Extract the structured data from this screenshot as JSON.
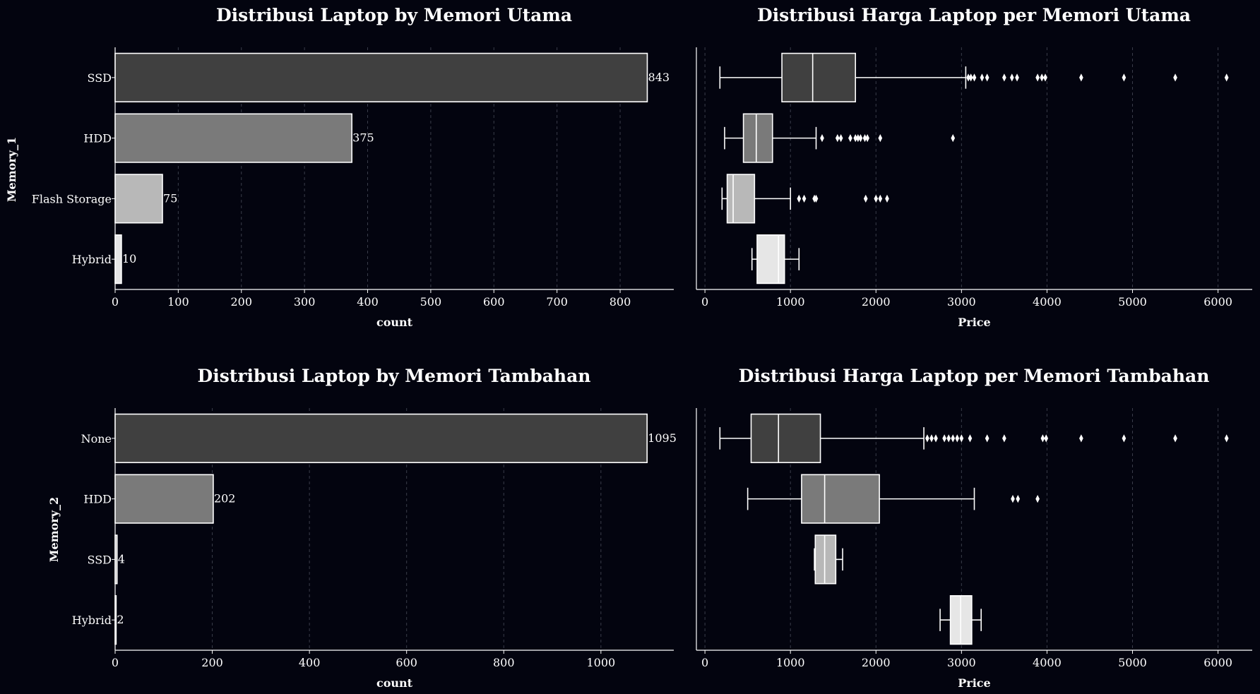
{
  "colors": {
    "background": "#03040f",
    "foreground": "#ffffff",
    "grid": "#3a3d4a",
    "categories": [
      "#404040",
      "#7a7a7a",
      "#b8b8b8",
      "#e6e6e6"
    ]
  },
  "chart_data": [
    {
      "type": "bar",
      "orientation": "horizontal",
      "title": "Distribusi Laptop by Memori Utama",
      "xlabel": "count",
      "ylabel": "Memory_1",
      "categories": [
        "SSD",
        "HDD",
        "Flash Storage",
        "Hybrid"
      ],
      "values": [
        843,
        375,
        75,
        10
      ],
      "data_labels": [
        "843",
        "375",
        "75",
        "10"
      ],
      "xlim": [
        0,
        885
      ],
      "xticks": [
        0,
        100,
        200,
        300,
        400,
        500,
        600,
        700,
        800
      ],
      "grid": "vertical dashed"
    },
    {
      "type": "box",
      "orientation": "horizontal",
      "title": "Distribusi Harga Laptop per Memori Utama",
      "xlabel": "Price",
      "categories": [
        "SSD",
        "HDD",
        "Flash Storage",
        "Hybrid"
      ],
      "xlim": [
        -100,
        6400
      ],
      "xticks": [
        0,
        1000,
        2000,
        3000,
        4000,
        5000,
        6000
      ],
      "grid": "vertical dashed",
      "boxes": [
        {
          "whisker_low": 175,
          "q1": 900,
          "median": 1260,
          "q3": 1760,
          "whisker_high": 3050,
          "outliers": [
            3080,
            3110,
            3150,
            3240,
            3300,
            3500,
            3590,
            3650,
            3890,
            3940,
            3980,
            4400,
            4900,
            5500,
            6100
          ]
        },
        {
          "whisker_low": 230,
          "q1": 450,
          "median": 600,
          "q3": 790,
          "whisker_high": 1300,
          "outliers": [
            1370,
            1550,
            1590,
            1700,
            1760,
            1790,
            1820,
            1870,
            1900,
            2050,
            2900
          ]
        },
        {
          "whisker_low": 200,
          "q1": 260,
          "median": 330,
          "q3": 580,
          "whisker_high": 1000,
          "outliers": [
            1100,
            1160,
            1280,
            1300,
            1880,
            2000,
            2050,
            2130
          ]
        },
        {
          "whisker_low": 550,
          "q1": 610,
          "median": 860,
          "q3": 930,
          "whisker_high": 1100,
          "outliers": []
        }
      ]
    },
    {
      "type": "bar",
      "orientation": "horizontal",
      "title": "Distribusi Laptop by Memori Tambahan",
      "xlabel": "count",
      "ylabel": "Memory_2",
      "categories": [
        "None",
        "HDD",
        "SSD",
        "Hybrid"
      ],
      "values": [
        1095,
        202,
        4,
        2
      ],
      "data_labels": [
        "1095",
        "202",
        "4",
        "2"
      ],
      "xlim": [
        0,
        1150
      ],
      "xticks": [
        0,
        200,
        400,
        600,
        800,
        1000
      ],
      "grid": "vertical dashed"
    },
    {
      "type": "box",
      "orientation": "horizontal",
      "title": "Distribusi Harga Laptop per Memori Tambahan",
      "xlabel": "Price",
      "categories": [
        "None",
        "HDD",
        "SSD",
        "Hybrid"
      ],
      "xlim": [
        -100,
        6400
      ],
      "xticks": [
        0,
        1000,
        2000,
        3000,
        4000,
        5000,
        6000
      ],
      "grid": "vertical dashed",
      "boxes": [
        {
          "whisker_low": 175,
          "q1": 540,
          "median": 860,
          "q3": 1350,
          "whisker_high": 2560,
          "outliers": [
            2600,
            2650,
            2700,
            2800,
            2850,
            2900,
            2950,
            3000,
            3100,
            3300,
            3500,
            3950,
            3990,
            4400,
            4900,
            5500,
            6100
          ]
        },
        {
          "whisker_low": 500,
          "q1": 1130,
          "median": 1400,
          "q3": 2040,
          "whisker_high": 3150,
          "outliers": [
            3600,
            3660,
            3890
          ]
        },
        {
          "whisker_low": 1280,
          "q1": 1290,
          "median": 1400,
          "q3": 1530,
          "whisker_high": 1610,
          "outliers": []
        },
        {
          "whisker_low": 2750,
          "q1": 2870,
          "median": 2990,
          "q3": 3120,
          "whisker_high": 3230,
          "outliers": []
        }
      ]
    }
  ]
}
